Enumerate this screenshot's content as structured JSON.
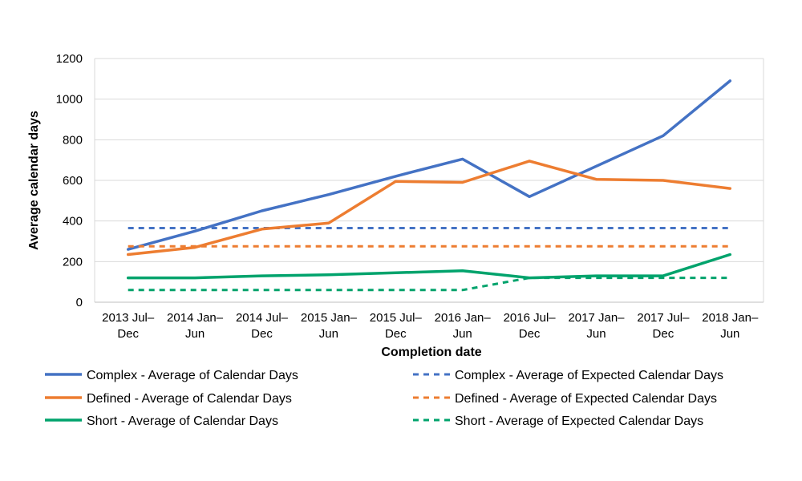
{
  "chart_data": {
    "type": "line",
    "title": "",
    "xlabel": "Completion date",
    "ylabel": "Average calendar days",
    "ylim": [
      0,
      1200
    ],
    "yticks": [
      0,
      200,
      400,
      600,
      800,
      1000,
      1200
    ],
    "grid": "horizontal",
    "legend_position": "bottom",
    "categories": [
      [
        "2013 Jul–",
        "Dec"
      ],
      [
        "2014 Jan–",
        "Jun"
      ],
      [
        "2014 Jul–",
        "Dec"
      ],
      [
        "2015 Jan–",
        "Jun"
      ],
      [
        "2015 Jul–",
        "Dec"
      ],
      [
        "2016 Jan–",
        "Jun"
      ],
      [
        "2016 Jul–",
        "Dec"
      ],
      [
        "2017 Jan–",
        "Jun"
      ],
      [
        "2017 Jul–",
        "Dec"
      ],
      [
        "2018 Jan–",
        "Jun"
      ]
    ],
    "series": [
      {
        "name": "Complex - Average of Calendar Days",
        "color": "#4472c4",
        "style": "solid",
        "values": [
          260,
          350,
          450,
          530,
          620,
          705,
          520,
          670,
          820,
          1090
        ]
      },
      {
        "name": "Complex - Average of Expected Calendar Days",
        "color": "#4472c4",
        "style": "dashed",
        "values": [
          365,
          365,
          365,
          365,
          365,
          365,
          365,
          365,
          365,
          365
        ]
      },
      {
        "name": "Defined - Average of Calendar Days",
        "color": "#ed7d31",
        "style": "solid",
        "values": [
          235,
          270,
          360,
          390,
          595,
          590,
          695,
          605,
          600,
          560
        ]
      },
      {
        "name": "Defined - Average of Expected Calendar Days",
        "color": "#ed7d31",
        "style": "dashed",
        "values": [
          275,
          275,
          275,
          275,
          275,
          275,
          275,
          275,
          275,
          275
        ]
      },
      {
        "name": "Short - Average of Calendar Days",
        "color": "#00a36c",
        "style": "solid",
        "values": [
          120,
          120,
          130,
          135,
          145,
          155,
          120,
          130,
          130,
          235
        ]
      },
      {
        "name": "Short - Average of Expected Calendar Days",
        "color": "#00a36c",
        "style": "dashed",
        "values": [
          60,
          60,
          60,
          60,
          60,
          60,
          120,
          120,
          120,
          120
        ]
      }
    ]
  }
}
